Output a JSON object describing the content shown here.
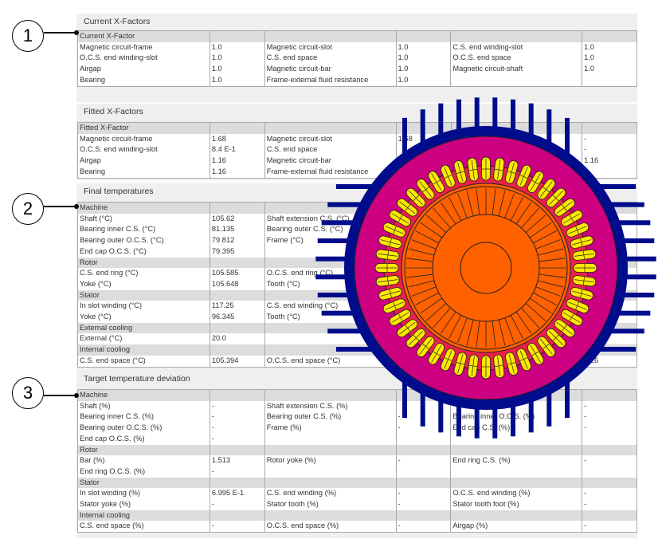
{
  "callouts": [
    "1",
    "2",
    "3"
  ],
  "colors": {
    "frame": "#000c8c",
    "stator_yoke": "#cc0080",
    "winding": "#ffe800",
    "slot": "#e8204a",
    "rotor": "#ff6000"
  },
  "sections": [
    {
      "title": "Current X-Factors",
      "rows": [
        {
          "group": true,
          "cells": [
            "Current X-Factor",
            "",
            "",
            "",
            "",
            ""
          ]
        },
        {
          "cells": [
            "Magnetic circuit-frame",
            "1.0",
            "Magnetic circuit-slot",
            "1.0",
            "C.S. end winding-slot",
            "1.0"
          ]
        },
        {
          "cells": [
            "O.C.S. end winding-slot",
            "1.0",
            "C.S. end space",
            "1.0",
            "O.C.S. end space",
            "1.0"
          ]
        },
        {
          "cells": [
            "Airgap",
            "1.0",
            "Magnetic circuit-bar",
            "1.0",
            "Magnetic circuit-shaft",
            "1.0"
          ]
        },
        {
          "cells": [
            "Bearing",
            "1.0",
            "Frame-external fluid resistance",
            "1.0",
            "",
            ""
          ]
        }
      ]
    },
    {
      "title": "Fitted X-Factors",
      "rows": [
        {
          "group": true,
          "cells": [
            "Fitted X-Factor",
            "",
            "",
            "",
            "",
            ""
          ]
        },
        {
          "cells": [
            "Magnetic circuit-frame",
            "1.68",
            "Magnetic circuit-slot",
            "1.68",
            "",
            "-"
          ]
        },
        {
          "cells": [
            "O.C.S. end winding-slot",
            "8.4 E-1",
            "C.S. end space",
            "",
            "",
            "-"
          ]
        },
        {
          "cells": [
            "Airgap",
            "1.16",
            "Magnetic circuit-bar",
            "",
            "",
            "1.16"
          ]
        },
        {
          "cells": [
            "Bearing",
            "1.16",
            "Frame-external fluid resistance",
            "",
            "",
            ""
          ]
        }
      ]
    },
    {
      "title": "Final temperatures",
      "rows": [
        {
          "group": true,
          "cells": [
            "Machine",
            "",
            "",
            "",
            "",
            ""
          ]
        },
        {
          "cells": [
            "Shaft (°C)",
            "105.62",
            "Shaft extension C.S. (°C)",
            "",
            "",
            ""
          ]
        },
        {
          "cells": [
            "Bearing inner C.S. (°C)",
            "81.135",
            "Bearing outer C.S. (°C)",
            "",
            "",
            ""
          ]
        },
        {
          "cells": [
            "Bearing outer O.C.S. (°C)",
            "79.812",
            "Frame (°C)",
            "",
            "",
            ""
          ]
        },
        {
          "cells": [
            "End cap O.C.S. (°C)",
            "79.395",
            "",
            "",
            "",
            ""
          ]
        },
        {
          "group": true,
          "cells": [
            "Rotor",
            "",
            "",
            "",
            "",
            ""
          ]
        },
        {
          "cells": [
            "C.S. end ring (°C)",
            "105.585",
            "O.C.S. end ring (°C)",
            "",
            "",
            ""
          ]
        },
        {
          "cells": [
            "Yoke (°C)",
            "105.648",
            "Tooth (°C)",
            "",
            "",
            ""
          ]
        },
        {
          "group": true,
          "cells": [
            "Stator",
            "",
            "",
            "",
            "",
            ""
          ]
        },
        {
          "cells": [
            "In slot winding (°C)",
            "117.25",
            "C.S. end winding (°C)",
            "",
            "",
            ""
          ]
        },
        {
          "cells": [
            "Yoke (°C)",
            "96.345",
            "Tooth (°C)",
            "",
            "",
            ""
          ]
        },
        {
          "group": true,
          "cells": [
            "External cooling",
            "",
            "",
            "",
            "",
            ""
          ]
        },
        {
          "cells": [
            "External (°C)",
            "20.0",
            "",
            "",
            "",
            ""
          ]
        },
        {
          "group": true,
          "cells": [
            "Internal cooling",
            "",
            "",
            "",
            "",
            ""
          ]
        },
        {
          "cells": [
            "C.S. end space (°C)",
            "105.394",
            "O.C.S. end space (°C)",
            "",
            "",
            "6.26"
          ]
        }
      ]
    },
    {
      "title": "Target temperature deviation",
      "rows": [
        {
          "group": true,
          "cells": [
            "Machine",
            "",
            "",
            "",
            "",
            ""
          ]
        },
        {
          "cells": [
            "Shaft (%)",
            "-",
            "Shaft extension C.S. (%)",
            "",
            "",
            "-"
          ]
        },
        {
          "cells": [
            "Bearing inner C.S. (%)",
            "-",
            "Bearing outer C.S. (%)",
            "-",
            "Bearing inner O.C.S. (%)",
            "-"
          ]
        },
        {
          "cells": [
            "Bearing outer O.C.S. (%)",
            "-",
            "Frame (%)",
            "-",
            "End cap C.S. (%)",
            "-"
          ]
        },
        {
          "cells": [
            "End cap O.C.S. (%)",
            "-",
            "",
            "",
            "",
            ""
          ]
        },
        {
          "group": true,
          "cells": [
            "Rotor",
            "",
            "",
            "",
            "",
            ""
          ]
        },
        {
          "cells": [
            "Bar (%)",
            "1.513",
            "Rotor yoke (%)",
            "-",
            "End ring C.S. (%)",
            "-"
          ]
        },
        {
          "cells": [
            "End ring O.C.S. (%)",
            "-",
            "",
            "",
            "",
            ""
          ]
        },
        {
          "group": true,
          "cells": [
            "Stator",
            "",
            "",
            "",
            "",
            ""
          ]
        },
        {
          "cells": [
            "In slot winding (%)",
            "6.995 E-1",
            "C.S. end winding (%)",
            "-",
            "O.C.S. end winding (%)",
            "-"
          ]
        },
        {
          "cells": [
            "Stator yoke (%)",
            "-",
            "Stator tooth (%)",
            "-",
            "Stator tooth foot (%)",
            "-"
          ]
        },
        {
          "group": true,
          "cells": [
            "Internal cooling",
            "",
            "",
            "",
            "",
            ""
          ]
        },
        {
          "cells": [
            "C.S. end space (%)",
            "-",
            "O.C.S. end space (%)",
            "-",
            "Airgap (%)",
            "-"
          ]
        }
      ]
    }
  ]
}
